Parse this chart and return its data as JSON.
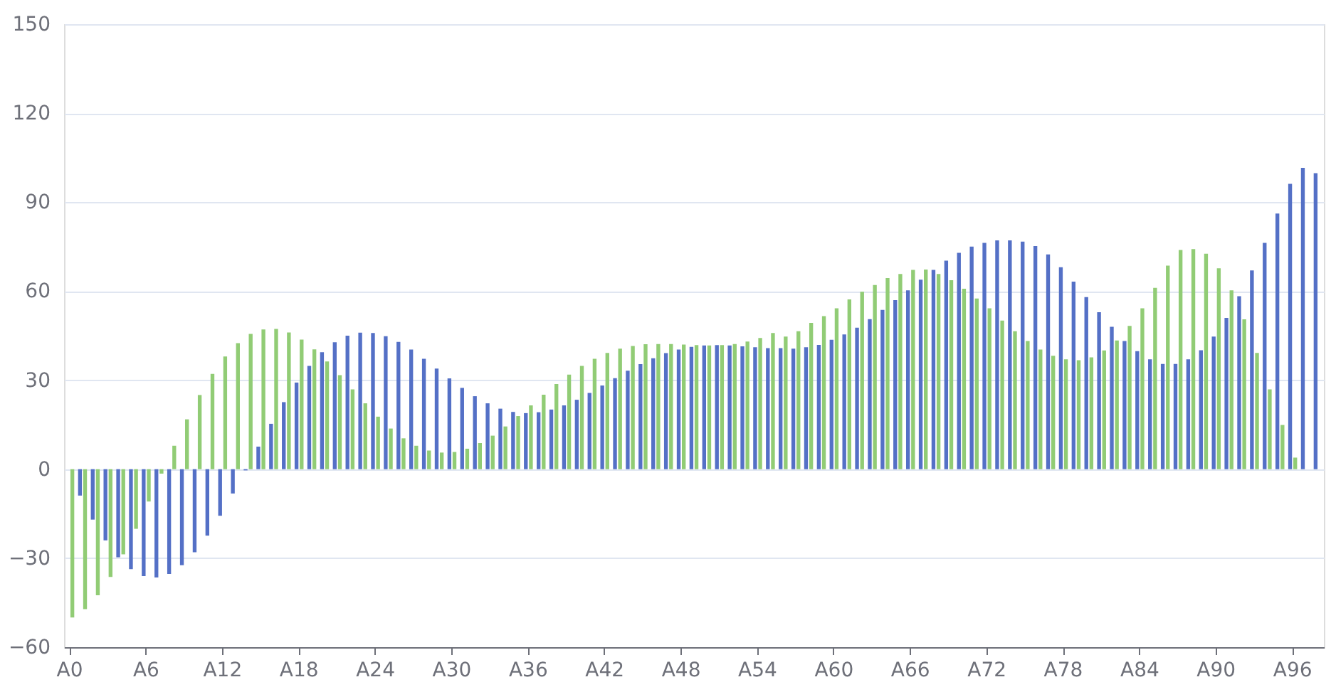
{
  "chart_data": {
    "type": "bar",
    "categories": [
      "A0",
      null,
      null,
      null,
      null,
      null,
      "A6",
      null,
      null,
      null,
      null,
      null,
      "A12",
      null,
      null,
      null,
      null,
      null,
      "A18",
      null,
      null,
      null,
      null,
      null,
      "A24",
      null,
      null,
      null,
      null,
      null,
      "A30",
      null,
      null,
      null,
      null,
      null,
      "A36",
      null,
      null,
      null,
      null,
      null,
      "A42",
      null,
      null,
      null,
      null,
      null,
      "A48",
      null,
      null,
      null,
      null,
      null,
      "A54",
      null,
      null,
      null,
      null,
      null,
      "A60",
      null,
      null,
      null,
      null,
      null,
      "A66",
      null,
      null,
      null,
      null,
      null,
      "A72",
      null,
      null,
      null,
      null,
      null,
      "A78",
      null,
      null,
      null,
      null,
      null,
      "A84",
      null,
      null,
      null,
      null,
      null,
      "A90",
      null,
      null,
      null,
      null,
      null,
      "A96",
      null,
      null
    ],
    "series": [
      {
        "color": "#5470c6",
        "values": [
          0.0,
          -8.9,
          -17.0,
          -24.0,
          -29.7,
          -33.7,
          -36.0,
          -36.5,
          -35.3,
          -32.4,
          -28.0,
          -22.4,
          -15.7,
          -8.2,
          -0.4,
          7.6,
          15.3,
          22.6,
          29.2,
          34.8,
          39.4,
          42.8,
          45.0,
          46.0,
          45.9,
          44.8,
          42.9,
          40.3,
          37.2,
          33.9,
          30.6,
          27.4,
          24.6,
          22.2,
          20.4,
          19.3,
          18.9,
          19.2,
          20.1,
          21.5,
          23.4,
          25.7,
          28.2,
          30.7,
          33.2,
          35.4,
          37.4,
          39.1,
          40.3,
          41.2,
          41.7,
          41.8,
          41.7,
          41.4,
          41.1,
          40.8,
          40.8,
          40.6,
          41.1,
          41.9,
          43.6,
          45.4,
          47.7,
          50.6,
          53.7,
          57.0,
          60.3,
          63.9,
          67.2,
          70.3,
          72.9,
          75.0,
          76.3,
          77.1,
          77.1,
          76.7,
          75.2,
          72.4,
          68.1,
          63.2,
          58.0,
          52.9,
          48.0,
          43.2,
          39.8,
          37.0,
          35.5,
          35.5,
          37.0,
          40.1,
          44.7,
          51.0,
          58.3,
          67.0,
          76.3,
          86.2,
          96.2,
          101.6,
          99.8
        ]
      },
      {
        "color": "#91cc75",
        "values": [
          -50.0,
          -47.2,
          -42.5,
          -36.3,
          -28.7,
          -20.1,
          -10.9,
          -1.5,
          7.9,
          16.8,
          25.0,
          32.1,
          38.0,
          42.5,
          45.6,
          47.1,
          47.3,
          46.1,
          43.7,
          40.4,
          36.3,
          31.7,
          26.9,
          22.2,
          17.7,
          13.7,
          10.4,
          7.9,
          6.3,
          5.6,
          5.8,
          6.9,
          8.8,
          11.3,
          14.4,
          17.9,
          21.5,
          25.1,
          28.7,
          31.9,
          34.8,
          37.2,
          39.2,
          40.6,
          41.5,
          42.1,
          42.2,
          42.2,
          42.0,
          41.8,
          41.7,
          41.8,
          42.2,
          43.0,
          44.2,
          45.9,
          44.7,
          46.5,
          49.3,
          51.6,
          54.2,
          57.2,
          59.8,
          62.1,
          64.4,
          65.8,
          67.2,
          67.3,
          65.8,
          63.7,
          60.8,
          57.5,
          54.2,
          50.1,
          46.5,
          43.2,
          40.3,
          38.2,
          37.0,
          36.7,
          37.7,
          40.0,
          43.4,
          48.3,
          54.2,
          61.1,
          68.6,
          73.9,
          74.2,
          72.6,
          67.7,
          60.3,
          50.5,
          39.2,
          26.9,
          14.9,
          3.9,
          0,
          0
        ]
      }
    ],
    "ylim": [
      -60,
      150
    ],
    "yticks": [
      -60,
      -30,
      0,
      30,
      60,
      90,
      120,
      150
    ],
    "grid": "y",
    "legend": false
  }
}
